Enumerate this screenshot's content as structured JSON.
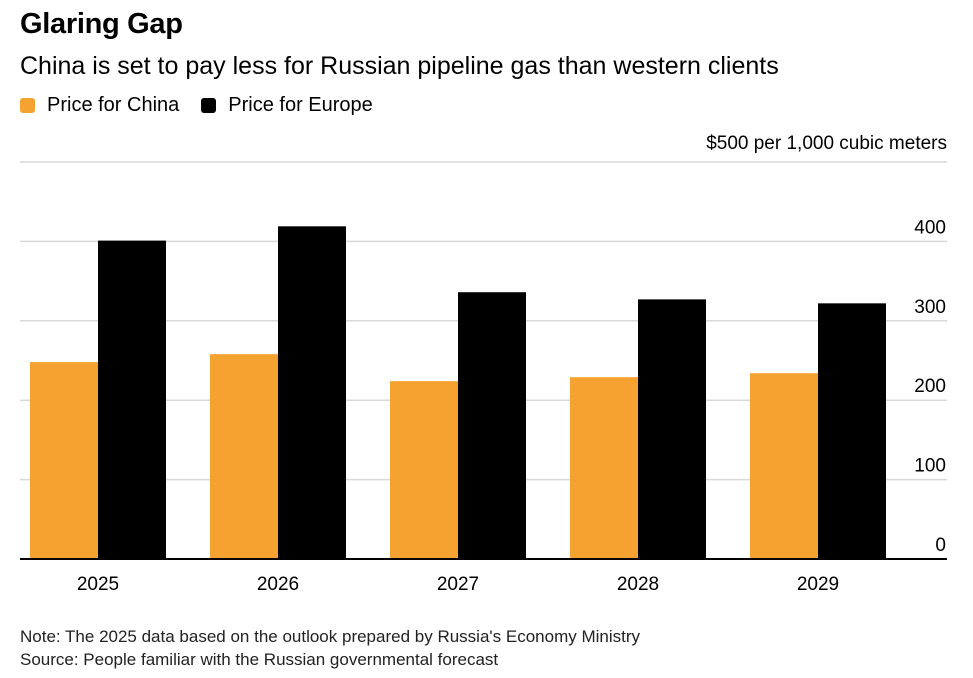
{
  "title": "Glaring Gap",
  "subtitle": "China is set to pay less for Russian pipeline gas than western clients",
  "legend": [
    {
      "label": "Price for China",
      "color": "#f5a231"
    },
    {
      "label": "Price for Europe",
      "color": "#000000"
    }
  ],
  "unit_label": "$500 per 1,000 cubic meters",
  "notes": {
    "note": "Note: The 2025 data based on the outlook prepared by Russia's Economy Ministry",
    "source": "Source: People familiar with the Russian governmental forecast"
  },
  "chart_data": {
    "type": "bar",
    "title": "Glaring Gap",
    "subtitle": "China is set to pay less for Russian pipeline gas than western clients",
    "categories": [
      "2025",
      "2026",
      "2027",
      "2028",
      "2029"
    ],
    "series": [
      {
        "name": "Price for China",
        "color": "#f5a231",
        "values": [
          248,
          258,
          224,
          229,
          234
        ]
      },
      {
        "name": "Price for Europe",
        "color": "#000000",
        "values": [
          401,
          419,
          336,
          327,
          322
        ]
      }
    ],
    "ylabel": "",
    "xlabel": "",
    "y_axis_label": "$500 per 1,000 cubic meters",
    "ylim": [
      0,
      500
    ],
    "yticks": [
      0,
      100,
      200,
      300,
      400
    ],
    "y_axis_position": "right",
    "grid": true,
    "legend_position": "top-left"
  }
}
